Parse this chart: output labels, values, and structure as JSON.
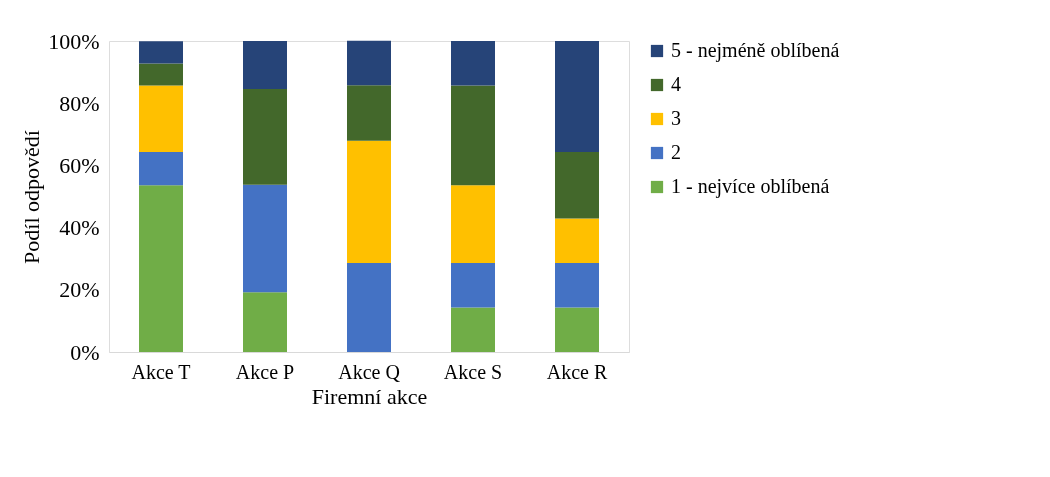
{
  "chart_data": {
    "type": "bar",
    "stacked": true,
    "xlabel": "Firemní akce",
    "ylabel": "Podíl odpovědí",
    "categories": [
      "Akce T",
      "Akce P",
      "Akce Q",
      "Akce S",
      "Akce R"
    ],
    "series": [
      {
        "name": "1 - nejvíce oblíbená",
        "color": "#70ad47",
        "values": [
          53.6,
          19.2,
          0,
          14.3,
          14.3
        ]
      },
      {
        "name": "2",
        "color": "#4472c4",
        "values": [
          10.7,
          34.6,
          28.6,
          14.3,
          14.3
        ]
      },
      {
        "name": "3",
        "color": "#ffc000",
        "values": [
          21.4,
          0,
          39.3,
          25.0,
          14.3
        ]
      },
      {
        "name": "4",
        "color": "#43682b",
        "values": [
          7.1,
          30.8,
          17.9,
          32.1,
          21.4
        ]
      },
      {
        "name": "5 - nejméně oblíbená",
        "color": "#264478",
        "values": [
          7.1,
          15.4,
          14.3,
          14.3,
          35.7
        ]
      }
    ],
    "ylim": [
      0,
      100
    ],
    "yticks": [
      {
        "value": 0,
        "label": "0%"
      },
      {
        "value": 20,
        "label": "20%"
      },
      {
        "value": 40,
        "label": "40%"
      },
      {
        "value": 60,
        "label": "60%"
      },
      {
        "value": 80,
        "label": "80%"
      },
      {
        "value": 100,
        "label": "100%"
      }
    ],
    "grid": false,
    "legend": "right"
  }
}
